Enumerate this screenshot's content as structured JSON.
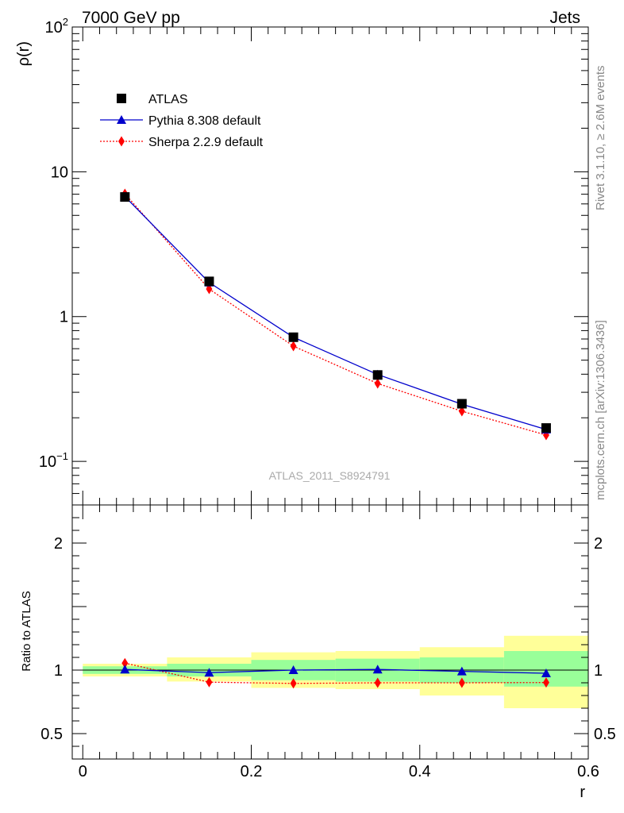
{
  "header": {
    "left": "7000 GeV pp",
    "right": "Jets"
  },
  "side_labels": {
    "rivet": "Rivet 3.1.10, ≥ 2.6M events",
    "mcplots": "mcplots.cern.ch [arXiv:1306.3436]"
  },
  "watermark": "ATLAS_2011_S8924791",
  "colors": {
    "atlas": "#000000",
    "pythia": "#0000cc",
    "sherpa": "#ff0000",
    "band_inner": "#99ff99",
    "band_outer": "#ffff99"
  },
  "chart_data": [
    {
      "type": "line",
      "panel": "main",
      "y_scale": "log",
      "ylabel": "ρ(r)",
      "xlim": [
        -0.0125,
        0.6
      ],
      "ylim": [
        0.05,
        100
      ],
      "y_ticks": [
        {
          "value": 100,
          "label": "10",
          "sup": "2"
        },
        {
          "value": 10,
          "label": "10",
          "sup": ""
        },
        {
          "value": 1,
          "label": "1",
          "sup": ""
        },
        {
          "value": 0.1,
          "label": "10",
          "sup": "−1"
        }
      ],
      "legend_position": "top-left",
      "x": [
        0.05,
        0.15,
        0.25,
        0.35,
        0.45,
        0.55
      ],
      "series": [
        {
          "name": "ATLAS",
          "marker": "square",
          "values": [
            6.7,
            1.75,
            0.72,
            0.395,
            0.25,
            0.17
          ]
        },
        {
          "name": "Pythia 8.308 default",
          "marker": "triangle",
          "values": [
            6.75,
            1.72,
            0.72,
            0.398,
            0.248,
            0.166
          ]
        },
        {
          "name": "Sherpa 2.2.9 default",
          "marker": "diamond",
          "values": [
            7.05,
            1.55,
            0.625,
            0.345,
            0.222,
            0.152
          ]
        }
      ]
    },
    {
      "type": "line",
      "panel": "ratio",
      "ylabel": "Ratio to ATLAS",
      "xlabel": "r",
      "xlim": [
        -0.0125,
        0.6
      ],
      "ylim": [
        0.3,
        2.3
      ],
      "x_tick_labels": [
        {
          "value": 0,
          "label": "0"
        },
        {
          "value": 0.2,
          "label": "0.2"
        },
        {
          "value": 0.4,
          "label": "0.4"
        },
        {
          "value": 0.6,
          "label": "0.6"
        }
      ],
      "y_tick_labels": [
        {
          "value": 2,
          "label": "2"
        },
        {
          "value": 1,
          "label": "1"
        },
        {
          "value": 0.5,
          "label": "0.5"
        }
      ],
      "bins": [
        [
          0.0,
          0.1
        ],
        [
          0.1,
          0.2
        ],
        [
          0.2,
          0.3
        ],
        [
          0.3,
          0.4
        ],
        [
          0.4,
          0.5
        ],
        [
          0.5,
          0.6
        ]
      ],
      "band_inner": [
        [
          0.97,
          1.03
        ],
        [
          0.95,
          1.05
        ],
        [
          0.92,
          1.08
        ],
        [
          0.91,
          1.09
        ],
        [
          0.9,
          1.1
        ],
        [
          0.87,
          1.15
        ]
      ],
      "band_outer": [
        [
          0.95,
          1.05
        ],
        [
          0.91,
          1.1
        ],
        [
          0.86,
          1.14
        ],
        [
          0.85,
          1.15
        ],
        [
          0.8,
          1.18
        ],
        [
          0.7,
          1.27
        ]
      ],
      "x": [
        0.05,
        0.15,
        0.25,
        0.35,
        0.45,
        0.55
      ],
      "series": [
        {
          "name": "Pythia 8.308 default",
          "marker": "triangle",
          "values": [
            1.005,
            0.98,
            1.0,
            1.005,
            0.99,
            0.975
          ]
        },
        {
          "name": "Sherpa 2.2.9 default",
          "marker": "diamond",
          "values": [
            1.055,
            0.905,
            0.895,
            0.9,
            0.9,
            0.902
          ]
        }
      ]
    }
  ]
}
